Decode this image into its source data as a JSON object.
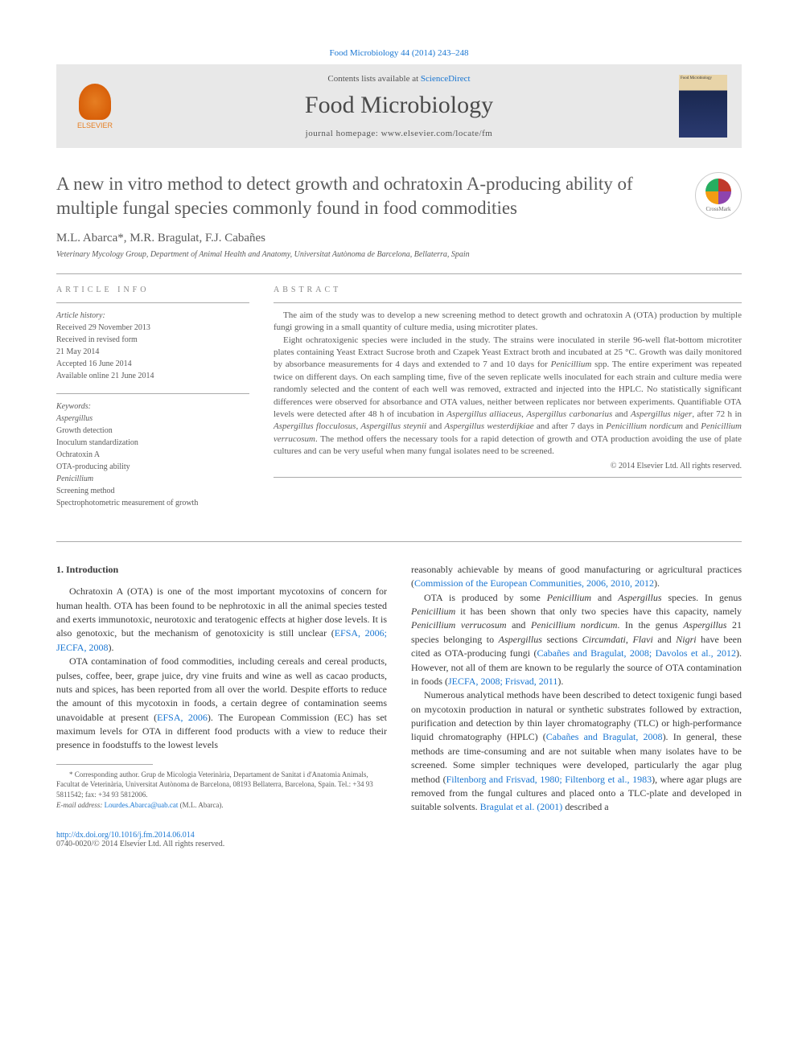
{
  "header": {
    "citation": "Food Microbiology 44 (2014) 243–248",
    "contents_prefix": "Contents lists available at ",
    "contents_link": "ScienceDirect",
    "journal_name": "Food Microbiology",
    "homepage_prefix": "journal homepage: ",
    "homepage_url": "www.elsevier.com/locate/fm",
    "publisher_name": "ELSEVIER"
  },
  "article": {
    "title": "A new in vitro method to detect growth and ochratoxin A-producing ability of multiple fungal species commonly found in food commodities",
    "crossmark_label": "CrossMark",
    "authors_html": "M.L. Abarca*, M.R. Bragulat, F.J. Cabañes",
    "affiliation": "Veterinary Mycology Group, Department of Animal Health and Anatomy, Universitat Autònoma de Barcelona, Bellaterra, Spain"
  },
  "info": {
    "label": "ARTICLE INFO",
    "history_label": "Article history:",
    "received": "Received 29 November 2013",
    "revised": "Received in revised form",
    "revised_date": "21 May 2014",
    "accepted": "Accepted 16 June 2014",
    "online": "Available online 21 June 2014",
    "keywords_label": "Keywords:",
    "keywords": [
      "Aspergillus",
      "Growth detection",
      "Inoculum standardization",
      "Ochratoxin A",
      "OTA-producing ability",
      "Penicillium",
      "Screening method",
      "Spectrophotometric measurement of growth"
    ]
  },
  "abstract": {
    "label": "ABSTRACT",
    "p1": "The aim of the study was to develop a new screening method to detect growth and ochratoxin A (OTA) production by multiple fungi growing in a small quantity of culture media, using microtiter plates.",
    "p2_html": "Eight ochratoxigenic species were included in the study. The strains were inoculated in sterile 96-well flat-bottom microtiter plates containing Yeast Extract Sucrose broth and Czapek Yeast Extract broth and incubated at 25 °C. Growth was daily monitored by absorbance measurements for 4 days and extended to 7 and 10 days for <em>Penicillium</em> spp. The entire experiment was repeated twice on different days. On each sampling time, five of the seven replicate wells inoculated for each strain and culture media were randomly selected and the content of each well was removed, extracted and injected into the HPLC. No statistically significant differences were observed for absorbance and OTA values, neither between replicates nor between experiments. Quantifiable OTA levels were detected after 48 h of incubation in <em>Aspergillus alliaceus</em>, <em>Aspergillus carbonarius</em> and <em>Aspergillus niger</em>, after 72 h in <em>Aspergillus flocculosus</em>, <em>Aspergillus steynii</em> and <em>Aspergillus westerdijkiae</em> and after 7 days in <em>Penicillium nordicum</em> and <em>Penicillium verrucosum</em>. The method offers the necessary tools for a rapid detection of growth and OTA production avoiding the use of plate cultures and can be very useful when many fungal isolates need to be screened.",
    "copyright": "© 2014 Elsevier Ltd. All rights reserved."
  },
  "body": {
    "intro_heading": "1. Introduction",
    "left_p1_html": "Ochratoxin A (OTA) is one of the most important mycotoxins of concern for human health. OTA has been found to be nephrotoxic in all the animal species tested and exerts immunotoxic, neurotoxic and teratogenic effects at higher dose levels. It is also genotoxic, but the mechanism of genotoxicity is still unclear (<a>EFSA, 2006; JECFA, 2008</a>).",
    "left_p2_html": "OTA contamination of food commodities, including cereals and cereal products, pulses, coffee, beer, grape juice, dry vine fruits and wine as well as cacao products, nuts and spices, has been reported from all over the world. Despite efforts to reduce the amount of this mycotoxin in foods, a certain degree of contamination seems unavoidable at present (<a>EFSA, 2006</a>). The European Commission (EC) has set maximum levels for OTA in different food products with a view to reduce their presence in foodstuffs to the lowest levels",
    "right_p1_html": "reasonably achievable by means of good manufacturing or agricultural practices (<a>Commission of the European Communities, 2006, 2010, 2012</a>).",
    "right_p2_html": "OTA is produced by some <em>Penicillium</em> and <em>Aspergillus</em> species. In genus <em>Penicillium</em> it has been shown that only two species have this capacity, namely <em>Penicillium verrucosum</em> and <em>Penicillium nordicum</em>. In the genus <em>Aspergillus</em> 21 species belonging to <em>Aspergillus</em> sections <em>Circumdati</em>, <em>Flavi</em> and <em>Nigri</em> have been cited as OTA-producing fungi (<a>Cabañes and Bragulat, 2008; Davolos et al., 2012</a>). However, not all of them are known to be regularly the source of OTA contamination in foods (<a>JECFA, 2008; Frisvad, 2011</a>).",
    "right_p3_html": "Numerous analytical methods have been described to detect toxigenic fungi based on mycotoxin production in natural or synthetic substrates followed by extraction, purification and detection by thin layer chromatography (TLC) or high-performance liquid chromatography (HPLC) (<a>Cabañes and Bragulat, 2008</a>). In general, these methods are time-consuming and are not suitable when many isolates have to be screened. Some simpler techniques were developed, particularly the agar plug method (<a>Filtenborg and Frisvad, 1980; Filtenborg et al., 1983</a>), where agar plugs are removed from the fungal cultures and placed onto a TLC-plate and developed in suitable solvents. <a>Bragulat et al. (2001)</a> described a"
  },
  "footnote": {
    "corr": "* Corresponding author. Grup de Micologia Veterinària, Departament de Sanitat i d'Anatomia Animals, Facultat de Veterinària, Universitat Autònoma de Barcelona, 08193 Bellaterra, Barcelona, Spain. Tel.: +34 93 5811542; fax: +34 93 5812006.",
    "email_label": "E-mail address: ",
    "email": "Lourdes.Abarca@uab.cat",
    "email_suffix": " (M.L. Abarca)."
  },
  "footer": {
    "doi": "http://dx.doi.org/10.1016/j.fm.2014.06.014",
    "issn_copy": "0740-0020/© 2014 Elsevier Ltd. All rights reserved."
  }
}
